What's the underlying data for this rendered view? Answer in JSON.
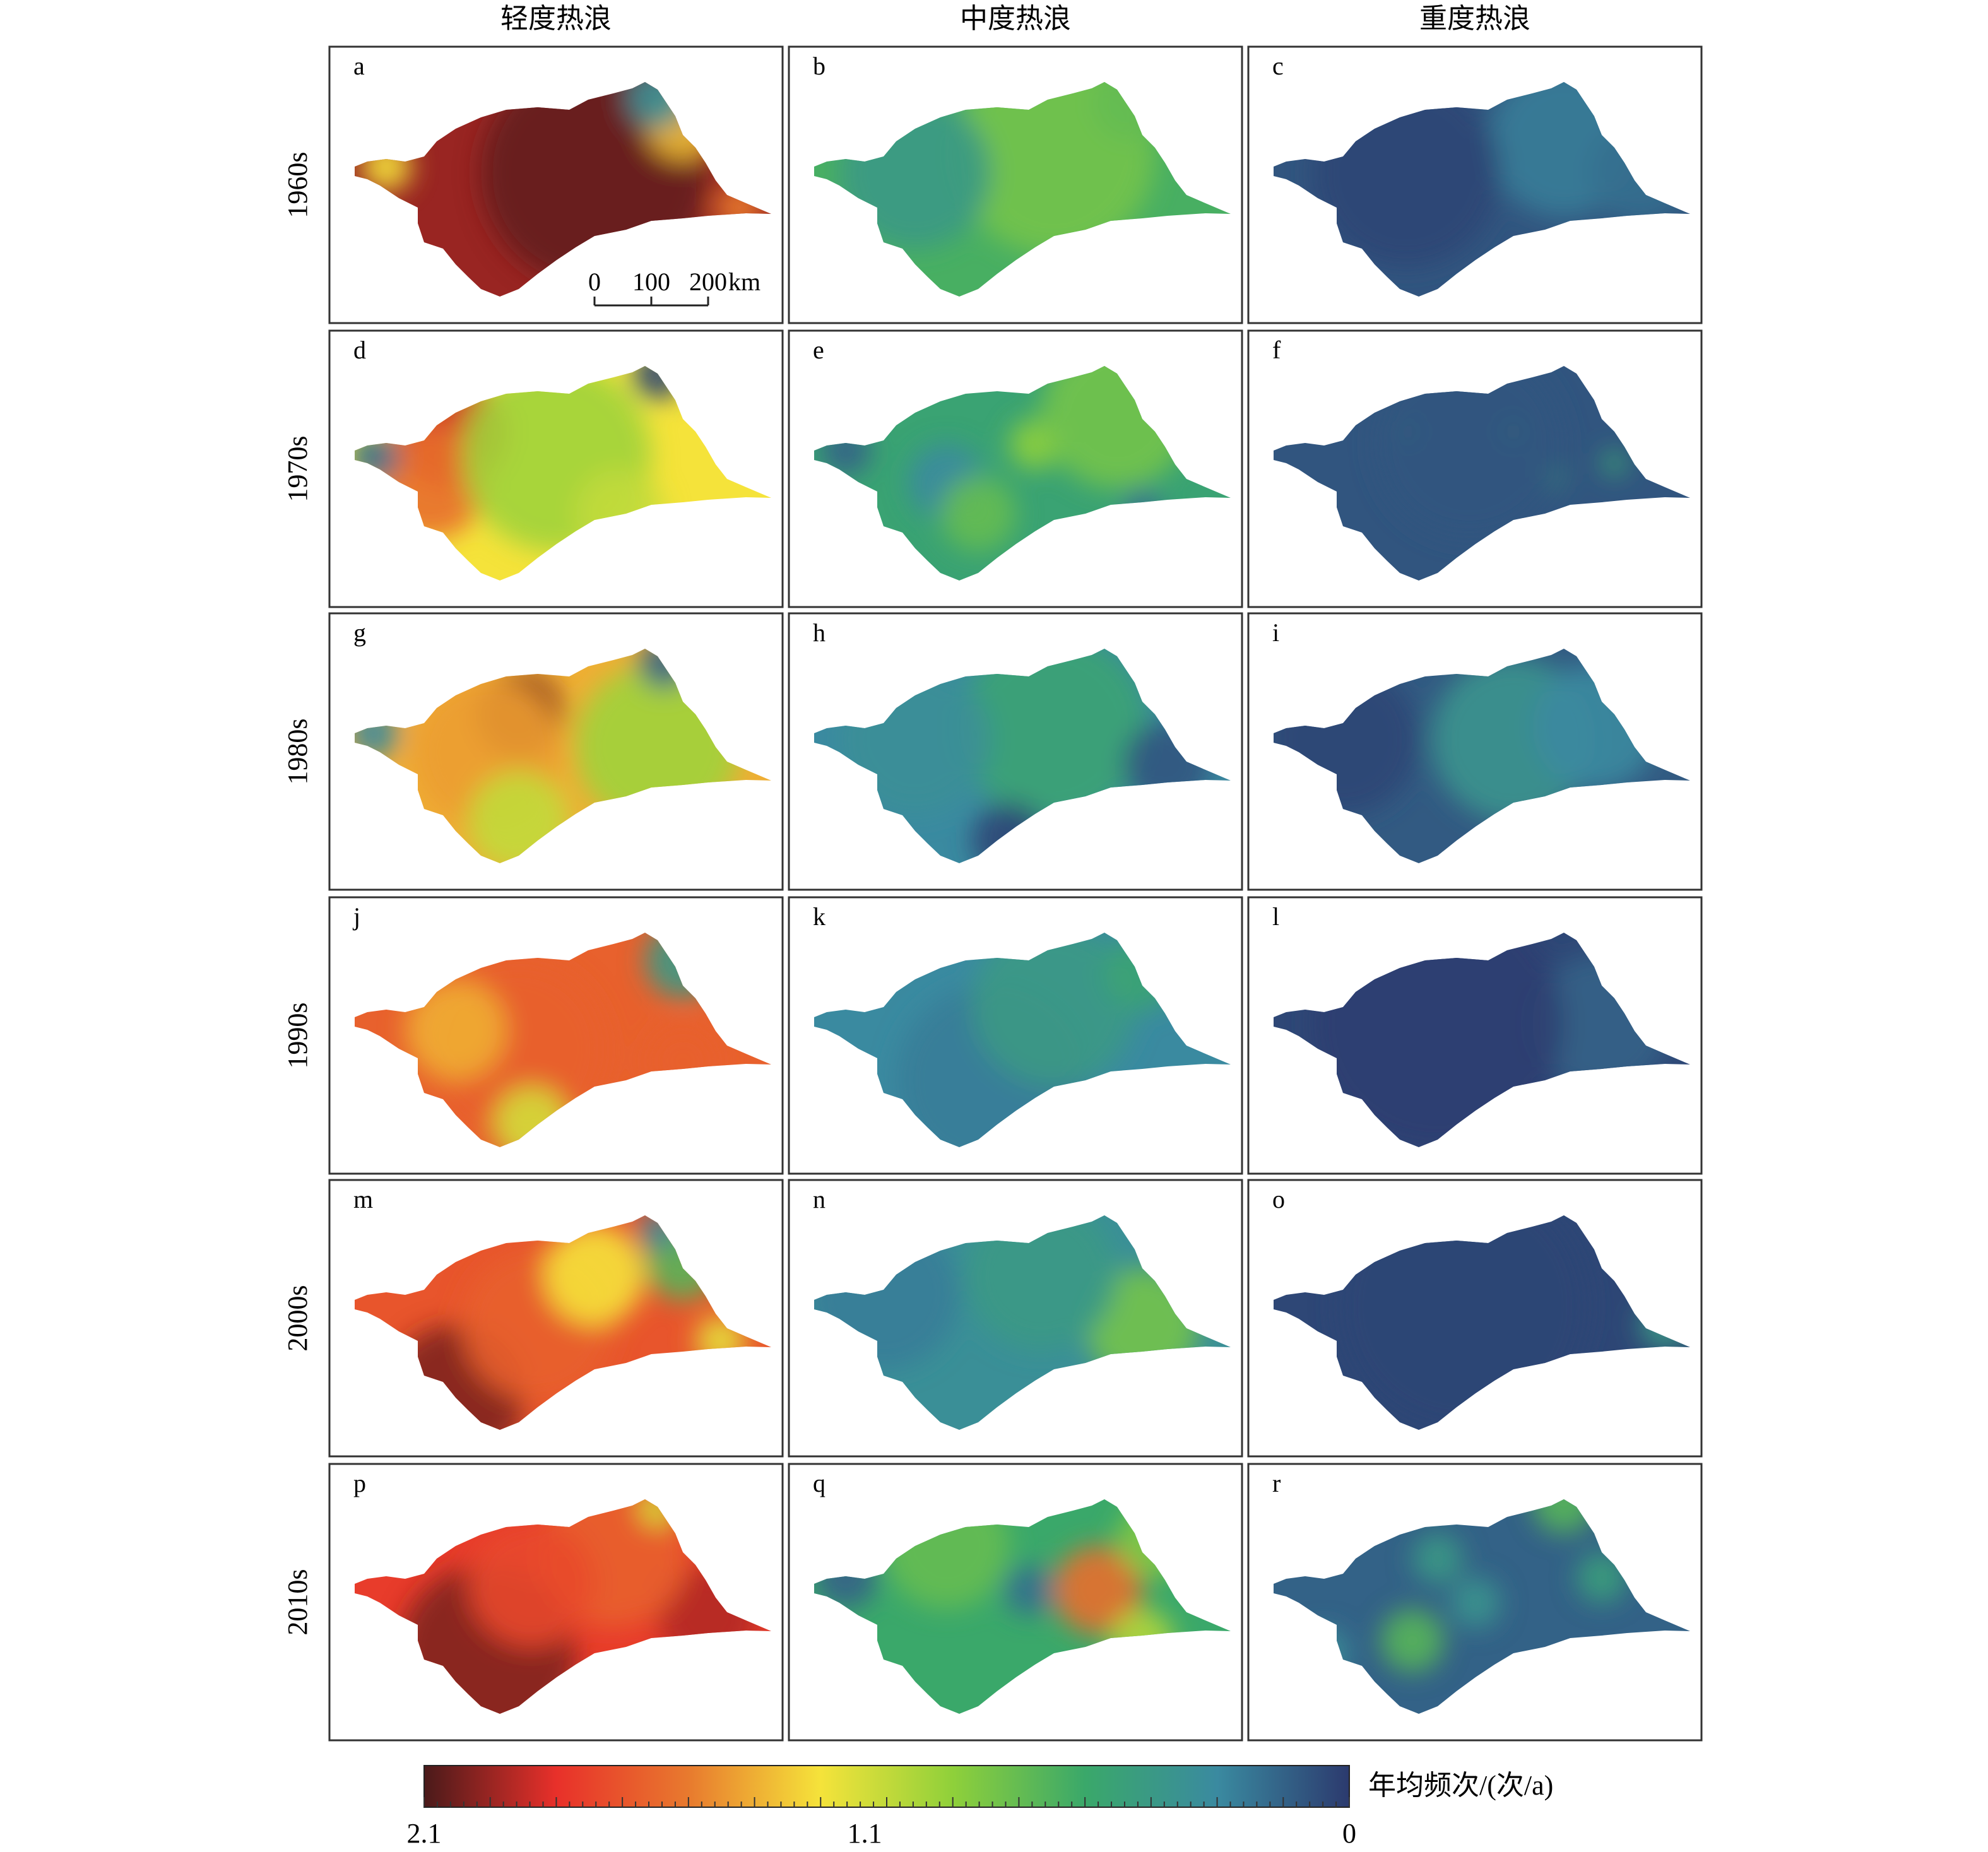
{
  "column_titles": [
    "轻度热浪",
    "中度热浪",
    "重度热浪"
  ],
  "row_labels": [
    "1960s",
    "1970s",
    "1980s",
    "1990s",
    "2000s",
    "2010s"
  ],
  "panels": [
    {
      "letter": "a",
      "decade": "1960s",
      "type": "轻度热浪",
      "dominant": "orange-red",
      "level": 1.95
    },
    {
      "letter": "b",
      "decade": "1960s",
      "type": "中度热浪",
      "dominant": "green",
      "level": 0.65
    },
    {
      "letter": "c",
      "decade": "1960s",
      "type": "重度热浪",
      "dominant": "dark-blue",
      "level": 0.1
    },
    {
      "letter": "d",
      "decade": "1970s",
      "type": "轻度热浪",
      "dominant": "yellow-green",
      "level": 1.2
    },
    {
      "letter": "e",
      "decade": "1970s",
      "type": "中度热浪",
      "dominant": "green-teal",
      "level": 0.55
    },
    {
      "letter": "f",
      "decade": "1970s",
      "type": "重度热浪",
      "dominant": "dark-blue",
      "level": 0.1
    },
    {
      "letter": "g",
      "decade": "1980s",
      "type": "轻度热浪",
      "dominant": "yellow-orange",
      "level": 1.35
    },
    {
      "letter": "h",
      "decade": "1980s",
      "type": "中度热浪",
      "dominant": "teal-blue",
      "level": 0.3
    },
    {
      "letter": "i",
      "decade": "1980s",
      "type": "重度热浪",
      "dominant": "dark-blue",
      "level": 0.12
    },
    {
      "letter": "j",
      "decade": "1990s",
      "type": "轻度热浪",
      "dominant": "orange",
      "level": 1.6
    },
    {
      "letter": "k",
      "decade": "1990s",
      "type": "中度热浪",
      "dominant": "light-blue",
      "level": 0.3
    },
    {
      "letter": "l",
      "decade": "1990s",
      "type": "重度热浪",
      "dominant": "dark-blue",
      "level": 0.05
    },
    {
      "letter": "m",
      "decade": "2000s",
      "type": "轻度热浪",
      "dominant": "orange",
      "level": 1.65
    },
    {
      "letter": "n",
      "decade": "2000s",
      "type": "中度热浪",
      "dominant": "teal-blue",
      "level": 0.35
    },
    {
      "letter": "o",
      "decade": "2000s",
      "type": "重度热浪",
      "dominant": "dark-blue",
      "level": 0.05
    },
    {
      "letter": "p",
      "decade": "2010s",
      "type": "轻度热浪",
      "dominant": "orange-red",
      "level": 1.75
    },
    {
      "letter": "q",
      "decade": "2010s",
      "type": "中度热浪",
      "dominant": "green",
      "level": 0.6
    },
    {
      "letter": "r",
      "decade": "2010s",
      "type": "重度热浪",
      "dominant": "dark-blue",
      "level": 0.15
    }
  ],
  "scale_bar": {
    "ticks": [
      "0",
      "100",
      "200"
    ],
    "unit": "km"
  },
  "colorbar": {
    "title": "年均频次/(次/a)",
    "tick_labels": [
      "2.1",
      "1.1",
      "0"
    ],
    "tick_values": [
      2.1,
      1.1,
      0
    ],
    "range": [
      0,
      2.1
    ],
    "colors": [
      "#4a1a1a",
      "#e8302a",
      "#e87a2e",
      "#f5e33a",
      "#8fd03a",
      "#3aa86a",
      "#3a8aa0",
      "#2c3a6e"
    ]
  },
  "colors": {
    "frame": "#333333",
    "text": "#111111"
  }
}
